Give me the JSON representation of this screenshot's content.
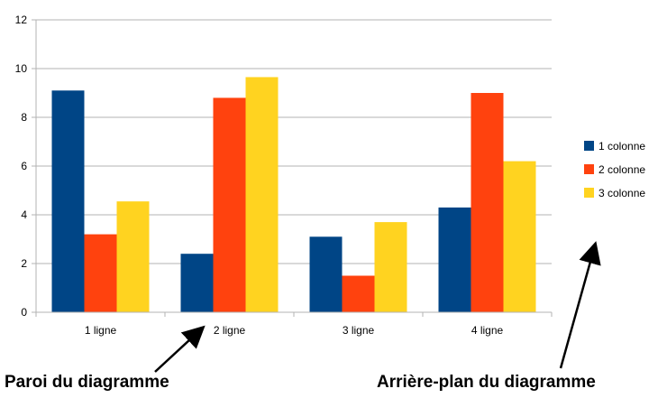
{
  "chart_data": {
    "type": "bar",
    "categories": [
      "1 ligne",
      "2 ligne",
      "3 ligne",
      "4 ligne"
    ],
    "series": [
      {
        "name": "1 colonne",
        "color": "#004586",
        "values": [
          9.1,
          2.4,
          3.1,
          4.3
        ]
      },
      {
        "name": "2 colonne",
        "color": "#ff420e",
        "values": [
          3.2,
          8.8,
          1.5,
          9.0
        ]
      },
      {
        "name": "3 colonne",
        "color": "#ffd320",
        "values": [
          4.55,
          9.65,
          3.7,
          6.2
        ]
      }
    ],
    "ylim": [
      0,
      12
    ],
    "yticks": [
      0,
      2,
      4,
      6,
      8,
      10,
      12
    ],
    "grid": true,
    "legend": "right"
  },
  "annotations": {
    "wall": "Paroi du diagramme",
    "background": "Arrière-plan du diagramme"
  }
}
